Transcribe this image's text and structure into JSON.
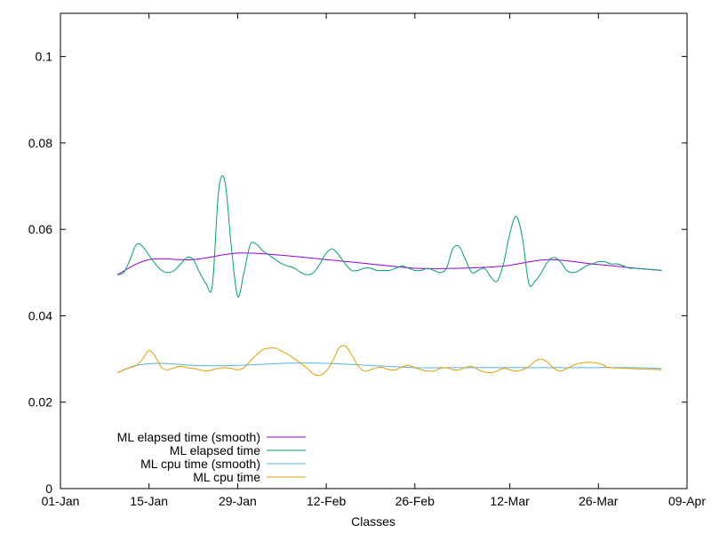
{
  "chart_data": {
    "type": "line",
    "title": "",
    "xlabel": "Classes",
    "ylabel": "",
    "x_type": "date",
    "xlim": [
      "2024-01-01",
      "2024-04-09"
    ],
    "ylim": [
      0,
      0.11
    ],
    "grid": false,
    "legend_position": "bottom-left",
    "x_ticks": [
      {
        "date": "2024-01-01",
        "label": "01-Jan"
      },
      {
        "date": "2024-01-15",
        "label": "15-Jan"
      },
      {
        "date": "2024-01-29",
        "label": "29-Jan"
      },
      {
        "date": "2024-02-12",
        "label": "12-Feb"
      },
      {
        "date": "2024-02-26",
        "label": "26-Feb"
      },
      {
        "date": "2024-03-12",
        "label": "12-Mar"
      },
      {
        "date": "2024-03-26",
        "label": "26-Mar"
      },
      {
        "date": "2024-04-09",
        "label": "09-Apr"
      }
    ],
    "y_ticks": [
      {
        "value": 0,
        "label": "0"
      },
      {
        "value": 0.02,
        "label": "0.02"
      },
      {
        "value": 0.04,
        "label": "0.04"
      },
      {
        "value": 0.06,
        "label": "0.06"
      },
      {
        "value": 0.08,
        "label": "0.08"
      },
      {
        "value": 0.1,
        "label": "0.1"
      }
    ],
    "series": [
      {
        "name": "ML elapsed time (smooth)",
        "color": "#9400d3",
        "points": [
          [
            "2024-01-10",
            0.0495
          ],
          [
            "2024-01-15",
            0.053
          ],
          [
            "2024-01-22",
            0.053
          ],
          [
            "2024-01-29",
            0.0545
          ],
          [
            "2024-02-05",
            0.054
          ],
          [
            "2024-02-12",
            0.053
          ],
          [
            "2024-02-19",
            0.052
          ],
          [
            "2024-02-26",
            0.051
          ],
          [
            "2024-03-04",
            0.051
          ],
          [
            "2024-03-11",
            0.0515
          ],
          [
            "2024-03-18",
            0.053
          ],
          [
            "2024-03-25",
            0.052
          ],
          [
            "2024-04-01",
            0.051
          ],
          [
            "2024-04-05",
            0.0505
          ]
        ]
      },
      {
        "name": "ML elapsed time",
        "color": "#009e73",
        "points": [
          [
            "2024-01-10",
            0.0495
          ],
          [
            "2024-01-11",
            0.05
          ],
          [
            "2024-01-12",
            0.053
          ],
          [
            "2024-01-13",
            0.0565
          ],
          [
            "2024-01-14",
            0.056
          ],
          [
            "2024-01-15",
            0.054
          ],
          [
            "2024-01-16",
            0.052
          ],
          [
            "2024-01-17",
            0.0505
          ],
          [
            "2024-01-18",
            0.05
          ],
          [
            "2024-01-19",
            0.0505
          ],
          [
            "2024-01-20",
            0.052
          ],
          [
            "2024-01-21",
            0.0535
          ],
          [
            "2024-01-22",
            0.053
          ],
          [
            "2024-01-23",
            0.05
          ],
          [
            "2024-01-24",
            0.0475
          ],
          [
            "2024-01-25",
            0.047
          ],
          [
            "2024-01-26",
            0.069
          ],
          [
            "2024-01-27",
            0.071
          ],
          [
            "2024-01-28",
            0.056
          ],
          [
            "2024-01-29",
            0.0445
          ],
          [
            "2024-01-30",
            0.05
          ],
          [
            "2024-01-31",
            0.0565
          ],
          [
            "2024-02-01",
            0.0565
          ],
          [
            "2024-02-02",
            0.055
          ],
          [
            "2024-02-03",
            0.054
          ],
          [
            "2024-02-04",
            0.053
          ],
          [
            "2024-02-05",
            0.052
          ],
          [
            "2024-02-06",
            0.0515
          ],
          [
            "2024-02-07",
            0.051
          ],
          [
            "2024-02-08",
            0.05
          ],
          [
            "2024-02-09",
            0.0495
          ],
          [
            "2024-02-10",
            0.05
          ],
          [
            "2024-02-11",
            0.052
          ],
          [
            "2024-02-12",
            0.0545
          ],
          [
            "2024-02-13",
            0.0555
          ],
          [
            "2024-02-14",
            0.054
          ],
          [
            "2024-02-15",
            0.052
          ],
          [
            "2024-02-16",
            0.0505
          ],
          [
            "2024-02-17",
            0.0505
          ],
          [
            "2024-02-18",
            0.051
          ],
          [
            "2024-02-19",
            0.051
          ],
          [
            "2024-02-20",
            0.0505
          ],
          [
            "2024-02-21",
            0.0505
          ],
          [
            "2024-02-22",
            0.0505
          ],
          [
            "2024-02-23",
            0.051
          ],
          [
            "2024-02-24",
            0.0515
          ],
          [
            "2024-02-25",
            0.051
          ],
          [
            "2024-02-26",
            0.0505
          ],
          [
            "2024-02-27",
            0.0505
          ],
          [
            "2024-02-28",
            0.051
          ],
          [
            "2024-02-29",
            0.0505
          ],
          [
            "2024-03-01",
            0.05
          ],
          [
            "2024-03-02",
            0.051
          ],
          [
            "2024-03-03",
            0.0555
          ],
          [
            "2024-03-04",
            0.056
          ],
          [
            "2024-03-05",
            0.053
          ],
          [
            "2024-03-06",
            0.05
          ],
          [
            "2024-03-07",
            0.0505
          ],
          [
            "2024-03-08",
            0.051
          ],
          [
            "2024-03-09",
            0.049
          ],
          [
            "2024-03-10",
            0.048
          ],
          [
            "2024-03-11",
            0.052
          ],
          [
            "2024-03-12",
            0.059
          ],
          [
            "2024-03-13",
            0.063
          ],
          [
            "2024-03-14",
            0.058
          ],
          [
            "2024-03-15",
            0.0475
          ],
          [
            "2024-03-16",
            0.048
          ],
          [
            "2024-03-17",
            0.05
          ],
          [
            "2024-03-18",
            0.0525
          ],
          [
            "2024-03-19",
            0.0535
          ],
          [
            "2024-03-20",
            0.0525
          ],
          [
            "2024-03-21",
            0.0505
          ],
          [
            "2024-03-22",
            0.05
          ],
          [
            "2024-03-23",
            0.0505
          ],
          [
            "2024-03-24",
            0.0515
          ],
          [
            "2024-03-25",
            0.052
          ],
          [
            "2024-03-26",
            0.0525
          ],
          [
            "2024-03-27",
            0.0525
          ],
          [
            "2024-03-28",
            0.052
          ],
          [
            "2024-03-29",
            0.052
          ],
          [
            "2024-03-30",
            0.0515
          ],
          [
            "2024-03-31",
            0.051
          ],
          [
            "2024-04-01",
            0.051
          ],
          [
            "2024-04-05",
            0.0505
          ]
        ]
      },
      {
        "name": "ML cpu time (smooth)",
        "color": "#56b4e9",
        "points": [
          [
            "2024-01-10",
            0.0268
          ],
          [
            "2024-01-13",
            0.0285
          ],
          [
            "2024-01-17",
            0.029
          ],
          [
            "2024-01-22",
            0.0285
          ],
          [
            "2024-01-29",
            0.0285
          ],
          [
            "2024-02-05",
            0.029
          ],
          [
            "2024-02-12",
            0.029
          ],
          [
            "2024-02-19",
            0.0285
          ],
          [
            "2024-02-26",
            0.028
          ],
          [
            "2024-03-04",
            0.028
          ],
          [
            "2024-03-11",
            0.028
          ],
          [
            "2024-03-18",
            0.028
          ],
          [
            "2024-03-25",
            0.028
          ],
          [
            "2024-04-01",
            0.028
          ],
          [
            "2024-04-05",
            0.0278
          ]
        ]
      },
      {
        "name": "ML cpu time",
        "color": "#e69f00",
        "points": [
          [
            "2024-01-10",
            0.0268
          ],
          [
            "2024-01-11",
            0.0275
          ],
          [
            "2024-01-12",
            0.028
          ],
          [
            "2024-01-13",
            0.0285
          ],
          [
            "2024-01-14",
            0.03
          ],
          [
            "2024-01-15",
            0.032
          ],
          [
            "2024-01-16",
            0.0305
          ],
          [
            "2024-01-17",
            0.028
          ],
          [
            "2024-01-18",
            0.0275
          ],
          [
            "2024-01-19",
            0.028
          ],
          [
            "2024-01-20",
            0.0283
          ],
          [
            "2024-01-21",
            0.028
          ],
          [
            "2024-01-22",
            0.0278
          ],
          [
            "2024-01-23",
            0.0275
          ],
          [
            "2024-01-24",
            0.0272
          ],
          [
            "2024-01-25",
            0.0275
          ],
          [
            "2024-01-26",
            0.0278
          ],
          [
            "2024-01-27",
            0.028
          ],
          [
            "2024-01-28",
            0.0278
          ],
          [
            "2024-01-29",
            0.0275
          ],
          [
            "2024-01-30",
            0.028
          ],
          [
            "2024-01-31",
            0.0295
          ],
          [
            "2024-02-01",
            0.031
          ],
          [
            "2024-02-02",
            0.0322
          ],
          [
            "2024-02-03",
            0.0325
          ],
          [
            "2024-02-04",
            0.0325
          ],
          [
            "2024-02-05",
            0.0318
          ],
          [
            "2024-02-06",
            0.031
          ],
          [
            "2024-02-07",
            0.03
          ],
          [
            "2024-02-08",
            0.029
          ],
          [
            "2024-02-09",
            0.0278
          ],
          [
            "2024-02-10",
            0.0265
          ],
          [
            "2024-02-11",
            0.0262
          ],
          [
            "2024-02-12",
            0.0272
          ],
          [
            "2024-02-13",
            0.0295
          ],
          [
            "2024-02-14",
            0.0325
          ],
          [
            "2024-02-15",
            0.033
          ],
          [
            "2024-02-16",
            0.031
          ],
          [
            "2024-02-17",
            0.0285
          ],
          [
            "2024-02-18",
            0.0272
          ],
          [
            "2024-02-19",
            0.0275
          ],
          [
            "2024-02-20",
            0.028
          ],
          [
            "2024-02-21",
            0.028
          ],
          [
            "2024-02-22",
            0.0275
          ],
          [
            "2024-02-23",
            0.0275
          ],
          [
            "2024-02-24",
            0.0282
          ],
          [
            "2024-02-25",
            0.0285
          ],
          [
            "2024-02-26",
            0.028
          ],
          [
            "2024-02-27",
            0.0275
          ],
          [
            "2024-02-28",
            0.0272
          ],
          [
            "2024-02-29",
            0.0272
          ],
          [
            "2024-03-01",
            0.0278
          ],
          [
            "2024-03-02",
            0.028
          ],
          [
            "2024-03-03",
            0.0275
          ],
          [
            "2024-03-04",
            0.0275
          ],
          [
            "2024-03-05",
            0.028
          ],
          [
            "2024-03-06",
            0.0283
          ],
          [
            "2024-03-07",
            0.0275
          ],
          [
            "2024-03-08",
            0.027
          ],
          [
            "2024-03-09",
            0.0268
          ],
          [
            "2024-03-10",
            0.0272
          ],
          [
            "2024-03-11",
            0.0278
          ],
          [
            "2024-03-12",
            0.0275
          ],
          [
            "2024-03-13",
            0.0272
          ],
          [
            "2024-03-14",
            0.0275
          ],
          [
            "2024-03-15",
            0.0282
          ],
          [
            "2024-03-16",
            0.0295
          ],
          [
            "2024-03-17",
            0.03
          ],
          [
            "2024-03-18",
            0.0292
          ],
          [
            "2024-03-19",
            0.0278
          ],
          [
            "2024-03-20",
            0.0272
          ],
          [
            "2024-03-21",
            0.0278
          ],
          [
            "2024-03-22",
            0.0285
          ],
          [
            "2024-03-23",
            0.029
          ],
          [
            "2024-03-24",
            0.0292
          ],
          [
            "2024-03-25",
            0.0292
          ],
          [
            "2024-03-26",
            0.029
          ],
          [
            "2024-03-27",
            0.0285
          ],
          [
            "2024-03-28",
            0.028
          ],
          [
            "2024-04-05",
            0.0275
          ]
        ]
      }
    ]
  }
}
